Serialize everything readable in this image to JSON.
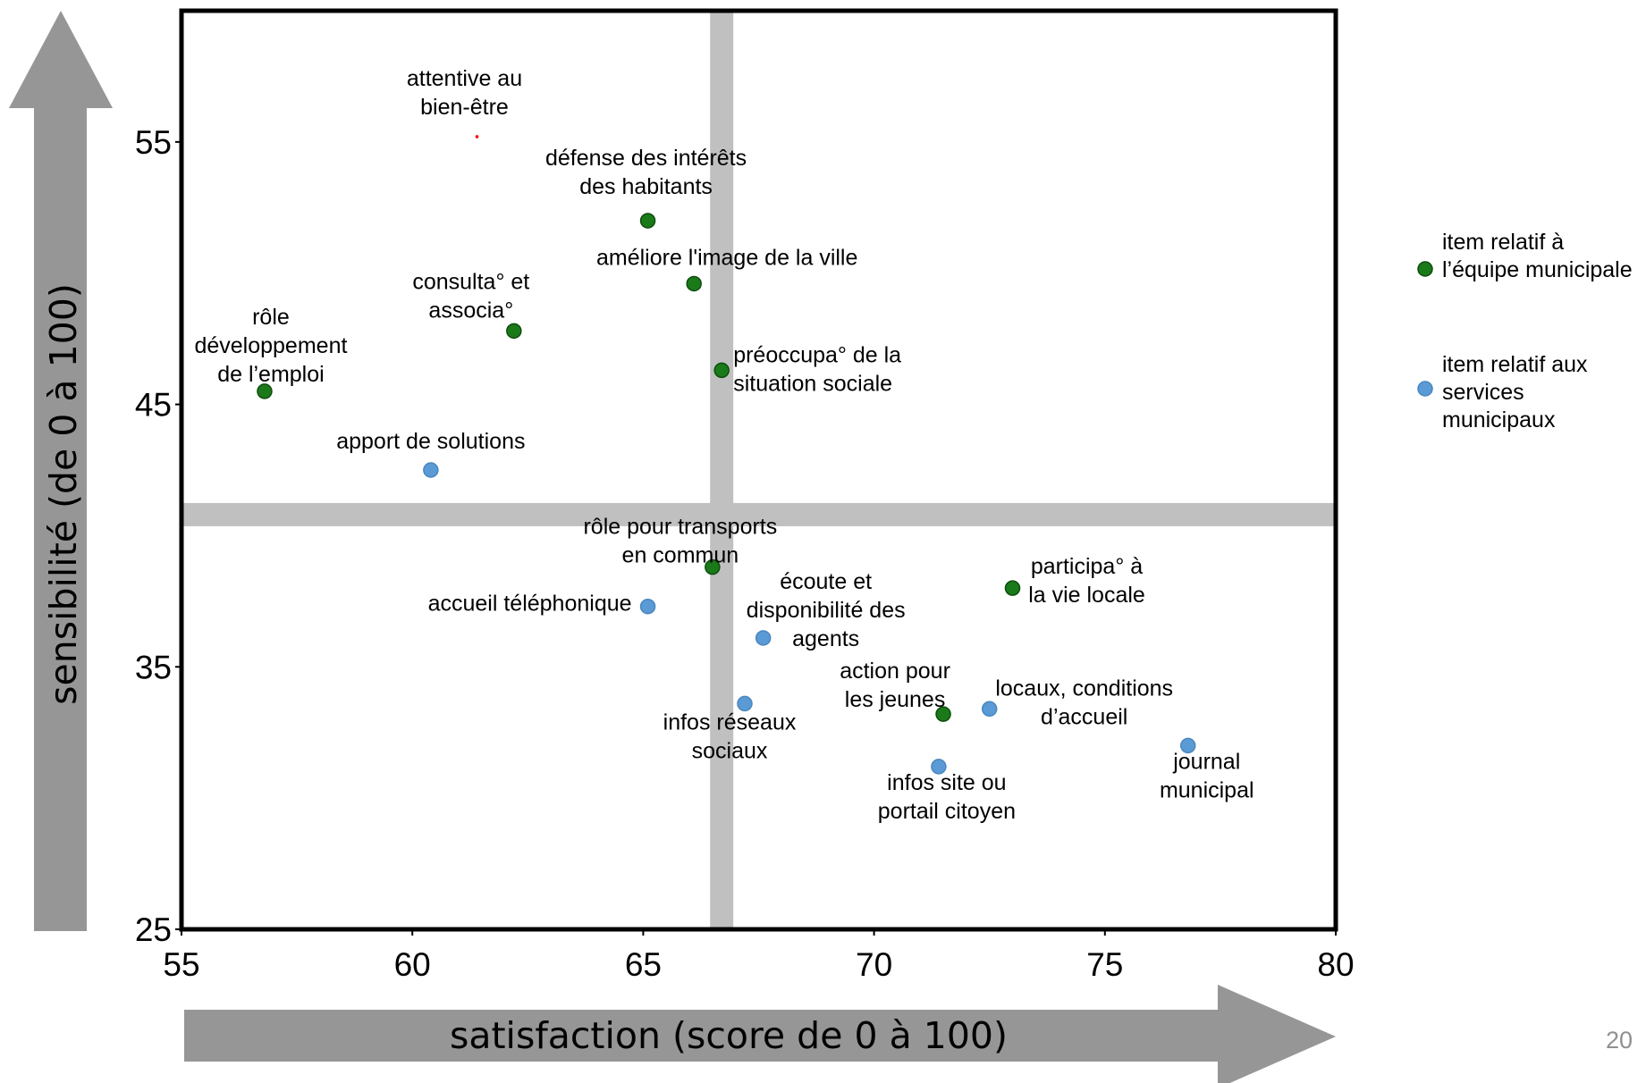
{
  "slide_number": "20",
  "colors": {
    "equipe": "#1a7a1a",
    "services": "#5b9bd5",
    "guides": "#c0c0c0",
    "arrows": "#969696",
    "highlight_dot": "#ff0000"
  },
  "chart_data": {
    "type": "scatter",
    "xlabel": "satisfaction (score de 0 à 100)",
    "ylabel": "sensibilité (de 0 à 100)",
    "xlim": [
      55,
      80
    ],
    "ylim": [
      25,
      60
    ],
    "xticks": [
      "55",
      "60",
      "65",
      "70",
      "75",
      "80"
    ],
    "yticks": [
      "25",
      "35",
      "45",
      "55"
    ],
    "reference_lines": {
      "x": 66.7,
      "y": 40.8
    },
    "legend": {
      "position": "right",
      "entries": [
        {
          "series": "equipe",
          "lines": [
            "item relatif à",
            "l’équipe municipale"
          ]
        },
        {
          "series": "services",
          "lines": [
            "item relatif aux",
            "services",
            "municipaux"
          ]
        }
      ]
    },
    "series": [
      {
        "key": "equipe",
        "points": [
          {
            "x": 61.4,
            "y": 55.2,
            "highlight": true,
            "label": [
              "attentive au",
              "bien-être"
            ]
          },
          {
            "x": 65.1,
            "y": 52.0,
            "label": [
              "défense des intérêts",
              "des habitants"
            ]
          },
          {
            "x": 66.1,
            "y": 49.6,
            "label": [
              "améliore l'image de la ville"
            ]
          },
          {
            "x": 62.2,
            "y": 47.8,
            "label": [
              "consulta° et",
              "associa°"
            ]
          },
          {
            "x": 66.7,
            "y": 46.3,
            "label": [
              "préoccupa° de la",
              "situation sociale"
            ]
          },
          {
            "x": 56.8,
            "y": 45.5,
            "label": [
              "rôle",
              "développement",
              "de l’emploi"
            ]
          },
          {
            "x": 66.5,
            "y": 38.8,
            "label": [
              "rôle pour transports",
              "en commun"
            ]
          },
          {
            "x": 73.0,
            "y": 38.0,
            "label": [
              "participa° à",
              "la vie locale"
            ]
          },
          {
            "x": 71.5,
            "y": 33.2,
            "label": [
              "action pour",
              "les jeunes"
            ]
          }
        ]
      },
      {
        "key": "services",
        "points": [
          {
            "x": 60.4,
            "y": 42.5,
            "label": [
              "apport de solutions"
            ]
          },
          {
            "x": 65.1,
            "y": 37.3,
            "label": [
              "accueil téléphonique"
            ]
          },
          {
            "x": 67.6,
            "y": 36.1,
            "label": [
              "écoute et",
              "disponibilité des",
              "agents"
            ]
          },
          {
            "x": 67.2,
            "y": 33.6,
            "label": [
              "infos réseaux",
              "sociaux"
            ]
          },
          {
            "x": 72.5,
            "y": 33.4,
            "label": [
              "locaux, conditions",
              "d’accueil"
            ]
          },
          {
            "x": 76.8,
            "y": 32.0,
            "label": [
              "journal",
              "municipal"
            ]
          },
          {
            "x": 71.4,
            "y": 31.2,
            "label": [
              "infos site ou",
              "portail citoyen"
            ]
          }
        ]
      }
    ]
  }
}
